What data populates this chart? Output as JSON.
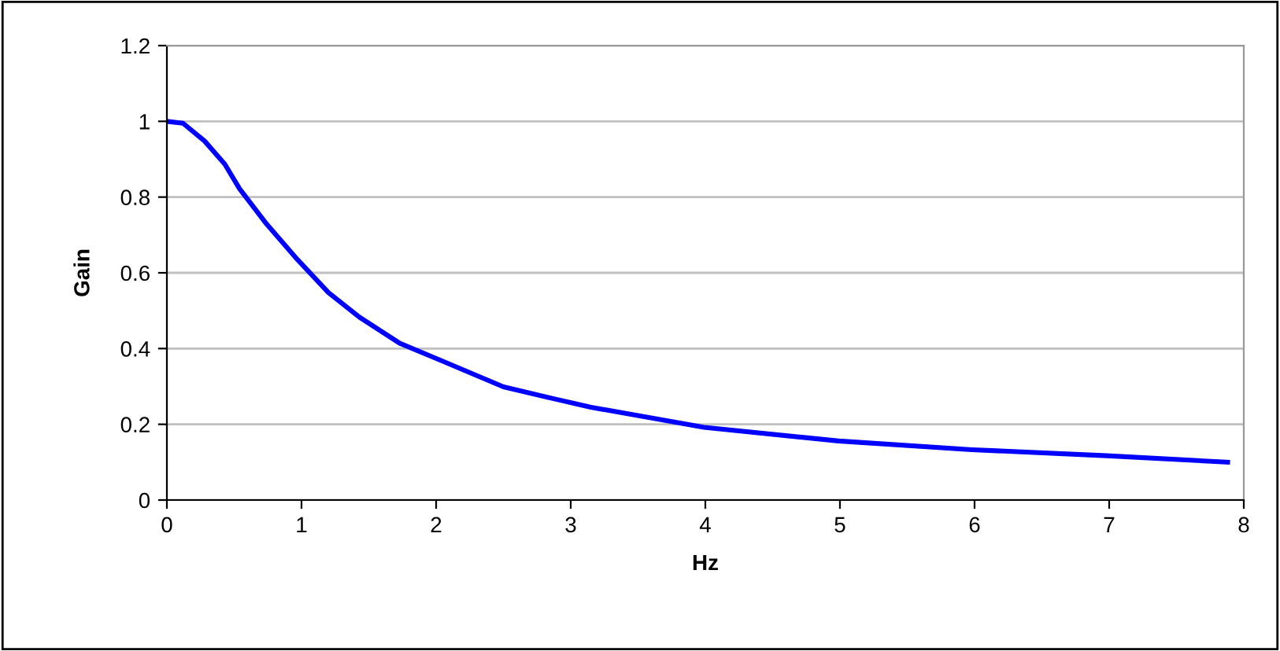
{
  "chart_data": {
    "type": "line",
    "xlabel": "Hz",
    "ylabel": "Gain",
    "xlim": [
      0,
      8
    ],
    "xticks": [
      0,
      1,
      2,
      3,
      4,
      5,
      6,
      7,
      8
    ],
    "ylim": [
      0,
      1.2
    ],
    "yticks": [
      0,
      0.2,
      0.4,
      0.6,
      0.8,
      1,
      1.2
    ],
    "grid": "y",
    "marker": "none",
    "line_style": "solid",
    "series": [
      {
        "color": "#0000ff",
        "x": [
          0,
          0.12,
          0.28,
          0.43,
          0.54,
          0.74,
          0.97,
          1.2,
          1.43,
          1.73,
          2.04,
          2.5,
          2.88,
          3.15,
          3.26,
          3.99,
          4.99,
          5.98,
          6.98,
          7.88
        ],
        "values": [
          1.0,
          0.995,
          0.948,
          0.887,
          0.822,
          0.729,
          0.635,
          0.548,
          0.483,
          0.414,
          0.368,
          0.299,
          0.267,
          0.245,
          0.238,
          0.192,
          0.156,
          0.133,
          0.117,
          0.1
        ]
      }
    ]
  }
}
